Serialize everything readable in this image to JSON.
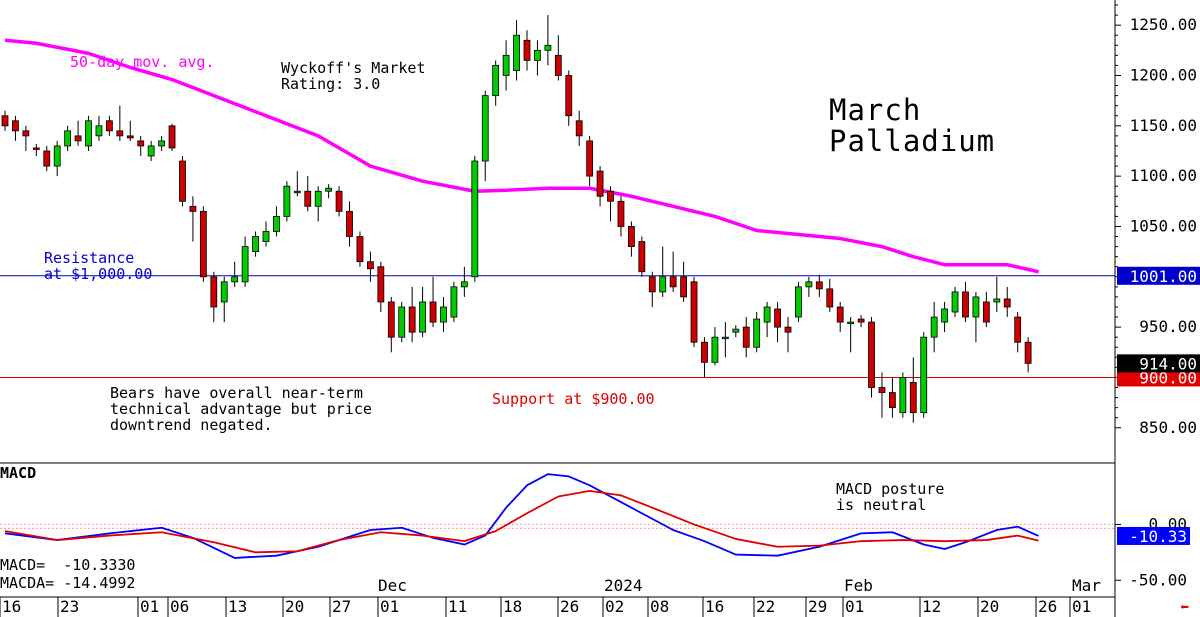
{
  "chart_data": [
    {
      "type": "candlestick",
      "title": "March Palladium",
      "ylim": [
        815,
        1275
      ],
      "y_ticks": [
        850,
        900,
        950,
        1000,
        1050,
        1100,
        1150,
        1200,
        1250
      ],
      "y_tick_labels": [
        "850.00",
        "",
        "950.00",
        "",
        "1050.00",
        "1100.00",
        "1150.00",
        "1200.00",
        "1250.00"
      ],
      "x_tick_labels": [
        "16",
        "23",
        "01",
        "06",
        "13",
        "20",
        "27",
        "01",
        "11",
        "18",
        "26",
        "02",
        "08",
        "16",
        "22",
        "29",
        "01",
        "12",
        "20",
        "26",
        "01"
      ],
      "x_month_labels": [
        "Dec",
        "2024",
        "Feb",
        "Mar"
      ],
      "candles": [
        {
          "o": 1160,
          "h": 1165,
          "l": 1145,
          "c": 1150
        },
        {
          "o": 1155,
          "h": 1160,
          "l": 1135,
          "c": 1145
        },
        {
          "o": 1145,
          "h": 1150,
          "l": 1125,
          "c": 1140
        },
        {
          "o": 1128,
          "h": 1132,
          "l": 1120,
          "c": 1127
        },
        {
          "o": 1125,
          "h": 1130,
          "l": 1105,
          "c": 1110
        },
        {
          "o": 1110,
          "h": 1135,
          "l": 1100,
          "c": 1130
        },
        {
          "o": 1130,
          "h": 1150,
          "l": 1125,
          "c": 1145
        },
        {
          "o": 1140,
          "h": 1155,
          "l": 1130,
          "c": 1135
        },
        {
          "o": 1130,
          "h": 1160,
          "l": 1125,
          "c": 1155
        },
        {
          "o": 1140,
          "h": 1160,
          "l": 1135,
          "c": 1150
        },
        {
          "o": 1155,
          "h": 1160,
          "l": 1140,
          "c": 1145
        },
        {
          "o": 1145,
          "h": 1170,
          "l": 1135,
          "c": 1140
        },
        {
          "o": 1140,
          "h": 1155,
          "l": 1135,
          "c": 1138
        },
        {
          "o": 1135,
          "h": 1140,
          "l": 1120,
          "c": 1130
        },
        {
          "o": 1120,
          "h": 1135,
          "l": 1115,
          "c": 1130
        },
        {
          "o": 1130,
          "h": 1140,
          "l": 1125,
          "c": 1135
        },
        {
          "o": 1150,
          "h": 1152,
          "l": 1125,
          "c": 1128
        },
        {
          "o": 1115,
          "h": 1120,
          "l": 1070,
          "c": 1075
        },
        {
          "o": 1070,
          "h": 1080,
          "l": 1035,
          "c": 1065
        },
        {
          "o": 1065,
          "h": 1070,
          "l": 995,
          "c": 1000
        },
        {
          "o": 1000,
          "h": 1005,
          "l": 955,
          "c": 970
        },
        {
          "o": 975,
          "h": 1000,
          "l": 955,
          "c": 995
        },
        {
          "o": 995,
          "h": 1015,
          "l": 990,
          "c": 1000
        },
        {
          "o": 995,
          "h": 1040,
          "l": 990,
          "c": 1030
        },
        {
          "o": 1025,
          "h": 1045,
          "l": 1020,
          "c": 1040
        },
        {
          "o": 1035,
          "h": 1055,
          "l": 1030,
          "c": 1045
        },
        {
          "o": 1045,
          "h": 1070,
          "l": 1040,
          "c": 1060
        },
        {
          "o": 1060,
          "h": 1095,
          "l": 1055,
          "c": 1090
        },
        {
          "o": 1085,
          "h": 1105,
          "l": 1080,
          "c": 1085
        },
        {
          "o": 1085,
          "h": 1100,
          "l": 1065,
          "c": 1070
        },
        {
          "o": 1070,
          "h": 1090,
          "l": 1055,
          "c": 1085
        },
        {
          "o": 1085,
          "h": 1092,
          "l": 1078,
          "c": 1088
        },
        {
          "o": 1085,
          "h": 1090,
          "l": 1060,
          "c": 1065
        },
        {
          "o": 1065,
          "h": 1075,
          "l": 1030,
          "c": 1040
        },
        {
          "o": 1040,
          "h": 1045,
          "l": 1010,
          "c": 1015
        },
        {
          "o": 1015,
          "h": 1025,
          "l": 995,
          "c": 1008
        },
        {
          "o": 1010,
          "h": 1015,
          "l": 965,
          "c": 975
        },
        {
          "o": 975,
          "h": 980,
          "l": 925,
          "c": 940
        },
        {
          "o": 940,
          "h": 975,
          "l": 935,
          "c": 970
        },
        {
          "o": 970,
          "h": 990,
          "l": 935,
          "c": 945
        },
        {
          "o": 945,
          "h": 990,
          "l": 940,
          "c": 975
        },
        {
          "o": 975,
          "h": 1000,
          "l": 950,
          "c": 955
        },
        {
          "o": 955,
          "h": 980,
          "l": 945,
          "c": 970
        },
        {
          "o": 960,
          "h": 995,
          "l": 955,
          "c": 990
        },
        {
          "o": 990,
          "h": 1010,
          "l": 980,
          "c": 995
        },
        {
          "o": 1000,
          "h": 1120,
          "l": 995,
          "c": 1115
        },
        {
          "o": 1115,
          "h": 1185,
          "l": 1095,
          "c": 1180
        },
        {
          "o": 1180,
          "h": 1215,
          "l": 1170,
          "c": 1210
        },
        {
          "o": 1200,
          "h": 1235,
          "l": 1185,
          "c": 1220
        },
        {
          "o": 1205,
          "h": 1255,
          "l": 1195,
          "c": 1240
        },
        {
          "o": 1235,
          "h": 1245,
          "l": 1205,
          "c": 1215
        },
        {
          "o": 1215,
          "h": 1235,
          "l": 1200,
          "c": 1225
        },
        {
          "o": 1225,
          "h": 1260,
          "l": 1210,
          "c": 1230
        },
        {
          "o": 1220,
          "h": 1240,
          "l": 1195,
          "c": 1200
        },
        {
          "o": 1200,
          "h": 1205,
          "l": 1150,
          "c": 1160
        },
        {
          "o": 1155,
          "h": 1165,
          "l": 1130,
          "c": 1140
        },
        {
          "o": 1135,
          "h": 1140,
          "l": 1090,
          "c": 1100
        },
        {
          "o": 1105,
          "h": 1110,
          "l": 1070,
          "c": 1080
        },
        {
          "o": 1085,
          "h": 1090,
          "l": 1055,
          "c": 1075
        },
        {
          "o": 1075,
          "h": 1080,
          "l": 1040,
          "c": 1050
        },
        {
          "o": 1050,
          "h": 1055,
          "l": 1020,
          "c": 1030
        },
        {
          "o": 1035,
          "h": 1040,
          "l": 1000,
          "c": 1005
        },
        {
          "o": 1000,
          "h": 1005,
          "l": 970,
          "c": 985
        },
        {
          "o": 985,
          "h": 1030,
          "l": 980,
          "c": 1000
        },
        {
          "o": 1000,
          "h": 1025,
          "l": 985,
          "c": 990
        },
        {
          "o": 1000,
          "h": 1015,
          "l": 975,
          "c": 980
        },
        {
          "o": 995,
          "h": 1000,
          "l": 930,
          "c": 935
        },
        {
          "o": 935,
          "h": 940,
          "l": 900,
          "c": 915
        },
        {
          "o": 915,
          "h": 950,
          "l": 912,
          "c": 940
        },
        {
          "o": 940,
          "h": 955,
          "l": 920,
          "c": 940
        },
        {
          "o": 945,
          "h": 952,
          "l": 940,
          "c": 948
        },
        {
          "o": 950,
          "h": 960,
          "l": 920,
          "c": 930
        },
        {
          "o": 930,
          "h": 965,
          "l": 925,
          "c": 958
        },
        {
          "o": 955,
          "h": 975,
          "l": 940,
          "c": 970
        },
        {
          "o": 968,
          "h": 975,
          "l": 935,
          "c": 950
        },
        {
          "o": 950,
          "h": 960,
          "l": 925,
          "c": 945
        },
        {
          "o": 960,
          "h": 995,
          "l": 955,
          "c": 990
        },
        {
          "o": 990,
          "h": 1000,
          "l": 980,
          "c": 995
        },
        {
          "o": 995,
          "h": 1002,
          "l": 980,
          "c": 988
        },
        {
          "o": 988,
          "h": 998,
          "l": 965,
          "c": 970
        },
        {
          "o": 970,
          "h": 975,
          "l": 945,
          "c": 955
        },
        {
          "o": 955,
          "h": 960,
          "l": 925,
          "c": 955
        },
        {
          "o": 958,
          "h": 962,
          "l": 950,
          "c": 955
        },
        {
          "o": 955,
          "h": 960,
          "l": 880,
          "c": 890
        },
        {
          "o": 890,
          "h": 905,
          "l": 860,
          "c": 885
        },
        {
          "o": 885,
          "h": 900,
          "l": 860,
          "c": 870
        },
        {
          "o": 865,
          "h": 905,
          "l": 860,
          "c": 900
        },
        {
          "o": 895,
          "h": 920,
          "l": 855,
          "c": 865
        },
        {
          "o": 865,
          "h": 945,
          "l": 860,
          "c": 940
        },
        {
          "o": 940,
          "h": 975,
          "l": 925,
          "c": 960
        },
        {
          "o": 955,
          "h": 975,
          "l": 945,
          "c": 968
        },
        {
          "o": 965,
          "h": 990,
          "l": 960,
          "c": 985
        },
        {
          "o": 985,
          "h": 995,
          "l": 955,
          "c": 960
        },
        {
          "o": 960,
          "h": 985,
          "l": 935,
          "c": 980
        },
        {
          "o": 975,
          "h": 985,
          "l": 950,
          "c": 955
        },
        {
          "o": 975,
          "h": 1000,
          "l": 965,
          "c": 978
        },
        {
          "o": 978,
          "h": 990,
          "l": 960,
          "c": 970
        },
        {
          "o": 960,
          "h": 965,
          "l": 925,
          "c": 935
        },
        {
          "o": 935,
          "h": 940,
          "l": 905,
          "c": 914
        }
      ],
      "moving_average": {
        "label": "50-day mov. avg.",
        "points": [
          [
            0,
            1235
          ],
          [
            3,
            1232
          ],
          [
            8,
            1222
          ],
          [
            12,
            1208
          ],
          [
            16,
            1196
          ],
          [
            20,
            1180
          ],
          [
            25,
            1160
          ],
          [
            30,
            1140
          ],
          [
            35,
            1110
          ],
          [
            40,
            1095
          ],
          [
            45,
            1085
          ],
          [
            48,
            1086
          ],
          [
            52,
            1088
          ],
          [
            56,
            1088
          ],
          [
            60,
            1080
          ],
          [
            64,
            1070
          ],
          [
            68,
            1060
          ],
          [
            72,
            1046
          ],
          [
            76,
            1042
          ],
          [
            80,
            1038
          ],
          [
            84,
            1030
          ],
          [
            87,
            1020
          ],
          [
            90,
            1012
          ],
          [
            93,
            1012
          ],
          [
            96,
            1012
          ],
          [
            99,
            1005
          ]
        ]
      },
      "horizontal_lines": [
        {
          "value": 1001,
          "label": "1001.00",
          "color": "#0000cc"
        },
        {
          "value": 900,
          "label": "900.00",
          "color": "#e00000"
        }
      ],
      "last_price_label": "914.00",
      "annotations": {
        "wyckoff": "Wyckoff's Market\nRating: 3.0",
        "resistance": "Resistance\nat $1,000.00",
        "support": "Support at $900.00",
        "bears": "Bears have overall near-term\ntechnical advantage but price\ndowntrend negated."
      }
    },
    {
      "type": "line",
      "title": "MACD",
      "ylim": [
        -65,
        55
      ],
      "y_tick_labels": [
        "0.00",
        "-50.00"
      ],
      "series": [
        {
          "name": "MACD",
          "color": "#0000ff",
          "points": [
            [
              0,
              -8
            ],
            [
              5,
              -14
            ],
            [
              10,
              -8
            ],
            [
              15,
              -3
            ],
            [
              18,
              -12
            ],
            [
              22,
              -30
            ],
            [
              26,
              -28
            ],
            [
              30,
              -20
            ],
            [
              35,
              -5
            ],
            [
              38,
              -3
            ],
            [
              41,
              -12
            ],
            [
              44,
              -18
            ],
            [
              46,
              -10
            ],
            [
              48,
              15
            ],
            [
              50,
              35
            ],
            [
              52,
              45
            ],
            [
              54,
              43
            ],
            [
              56,
              35
            ],
            [
              60,
              15
            ],
            [
              64,
              -5
            ],
            [
              67,
              -15
            ],
            [
              70,
              -27
            ],
            [
              74,
              -28
            ],
            [
              78,
              -20
            ],
            [
              82,
              -8
            ],
            [
              85,
              -7
            ],
            [
              88,
              -18
            ],
            [
              90,
              -22
            ],
            [
              92,
              -16
            ],
            [
              95,
              -5
            ],
            [
              97,
              -2
            ],
            [
              99,
              -10.333
            ]
          ]
        },
        {
          "name": "MACDA",
          "color": "#e00000",
          "points": [
            [
              0,
              -6
            ],
            [
              5,
              -14
            ],
            [
              10,
              -10
            ],
            [
              15,
              -7
            ],
            [
              20,
              -16
            ],
            [
              24,
              -25
            ],
            [
              28,
              -24
            ],
            [
              32,
              -14
            ],
            [
              36,
              -7
            ],
            [
              40,
              -10
            ],
            [
              44,
              -15
            ],
            [
              47,
              -6
            ],
            [
              50,
              10
            ],
            [
              53,
              25
            ],
            [
              56,
              30
            ],
            [
              59,
              26
            ],
            [
              62,
              15
            ],
            [
              66,
              0
            ],
            [
              70,
              -13
            ],
            [
              74,
              -20
            ],
            [
              78,
              -19
            ],
            [
              82,
              -15
            ],
            [
              86,
              -14
            ],
            [
              90,
              -15
            ],
            [
              94,
              -14
            ],
            [
              97,
              -10
            ],
            [
              99,
              -14.499
            ]
          ]
        }
      ],
      "readout": {
        "macd": "MACD=  -10.3330",
        "macda": "MACDA= -14.4992"
      },
      "current_label": "-10.33",
      "annotation": "MACD posture\nis neutral"
    }
  ]
}
